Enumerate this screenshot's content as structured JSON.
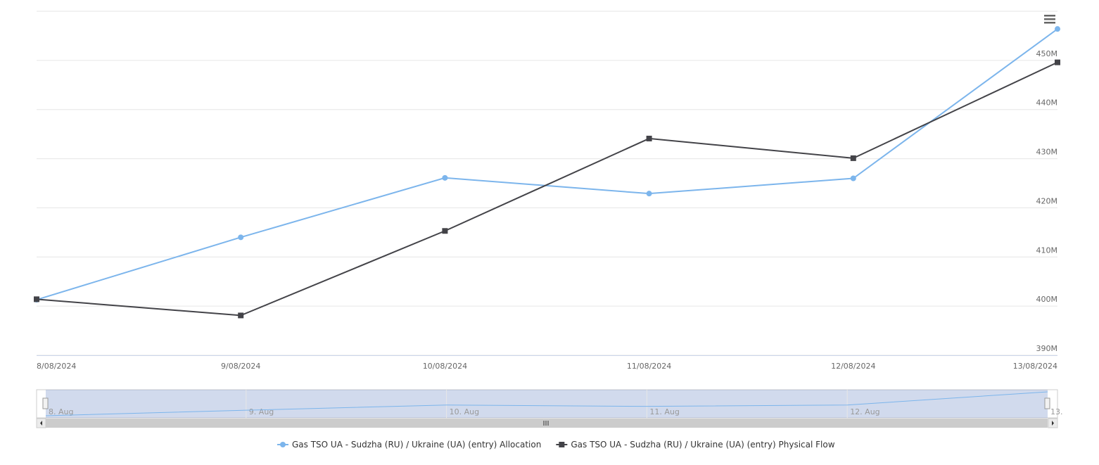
{
  "chart_data": {
    "type": "line",
    "categories": [
      "8/08/2024",
      "9/08/2024",
      "10/08/2024",
      "11/08/2024",
      "12/08/2024",
      "13/08/2024"
    ],
    "series": [
      {
        "name": "Gas TSO UA - Sudzha (RU) / Ukraine (UA) (entry) Allocation",
        "color": "#7cb5ec",
        "marker": "circle",
        "values": [
          401300000,
          414000000,
          426100000,
          422900000,
          426000000,
          456400000
        ]
      },
      {
        "name": "Gas TSO UA - Sudzha (RU) / Ukraine (UA) (entry) Physical Flow",
        "color": "#434348",
        "marker": "square",
        "values": [
          401400000,
          398100000,
          415300000,
          434100000,
          430100000,
          449600000
        ]
      }
    ],
    "ylim": [
      390000000,
      460000000
    ],
    "yticks": [
      {
        "value": 390000000,
        "label": "390M"
      },
      {
        "value": 400000000,
        "label": "400M"
      },
      {
        "value": 410000000,
        "label": "410M"
      },
      {
        "value": 420000000,
        "label": "420M"
      },
      {
        "value": 430000000,
        "label": "430M"
      },
      {
        "value": 440000000,
        "label": "440M"
      },
      {
        "value": 450000000,
        "label": "450M"
      }
    ],
    "grid": true,
    "navigator": {
      "labels": [
        "8. Aug",
        "9. Aug",
        "10. Aug",
        "11. Aug",
        "12. Aug",
        "13."
      ]
    }
  }
}
